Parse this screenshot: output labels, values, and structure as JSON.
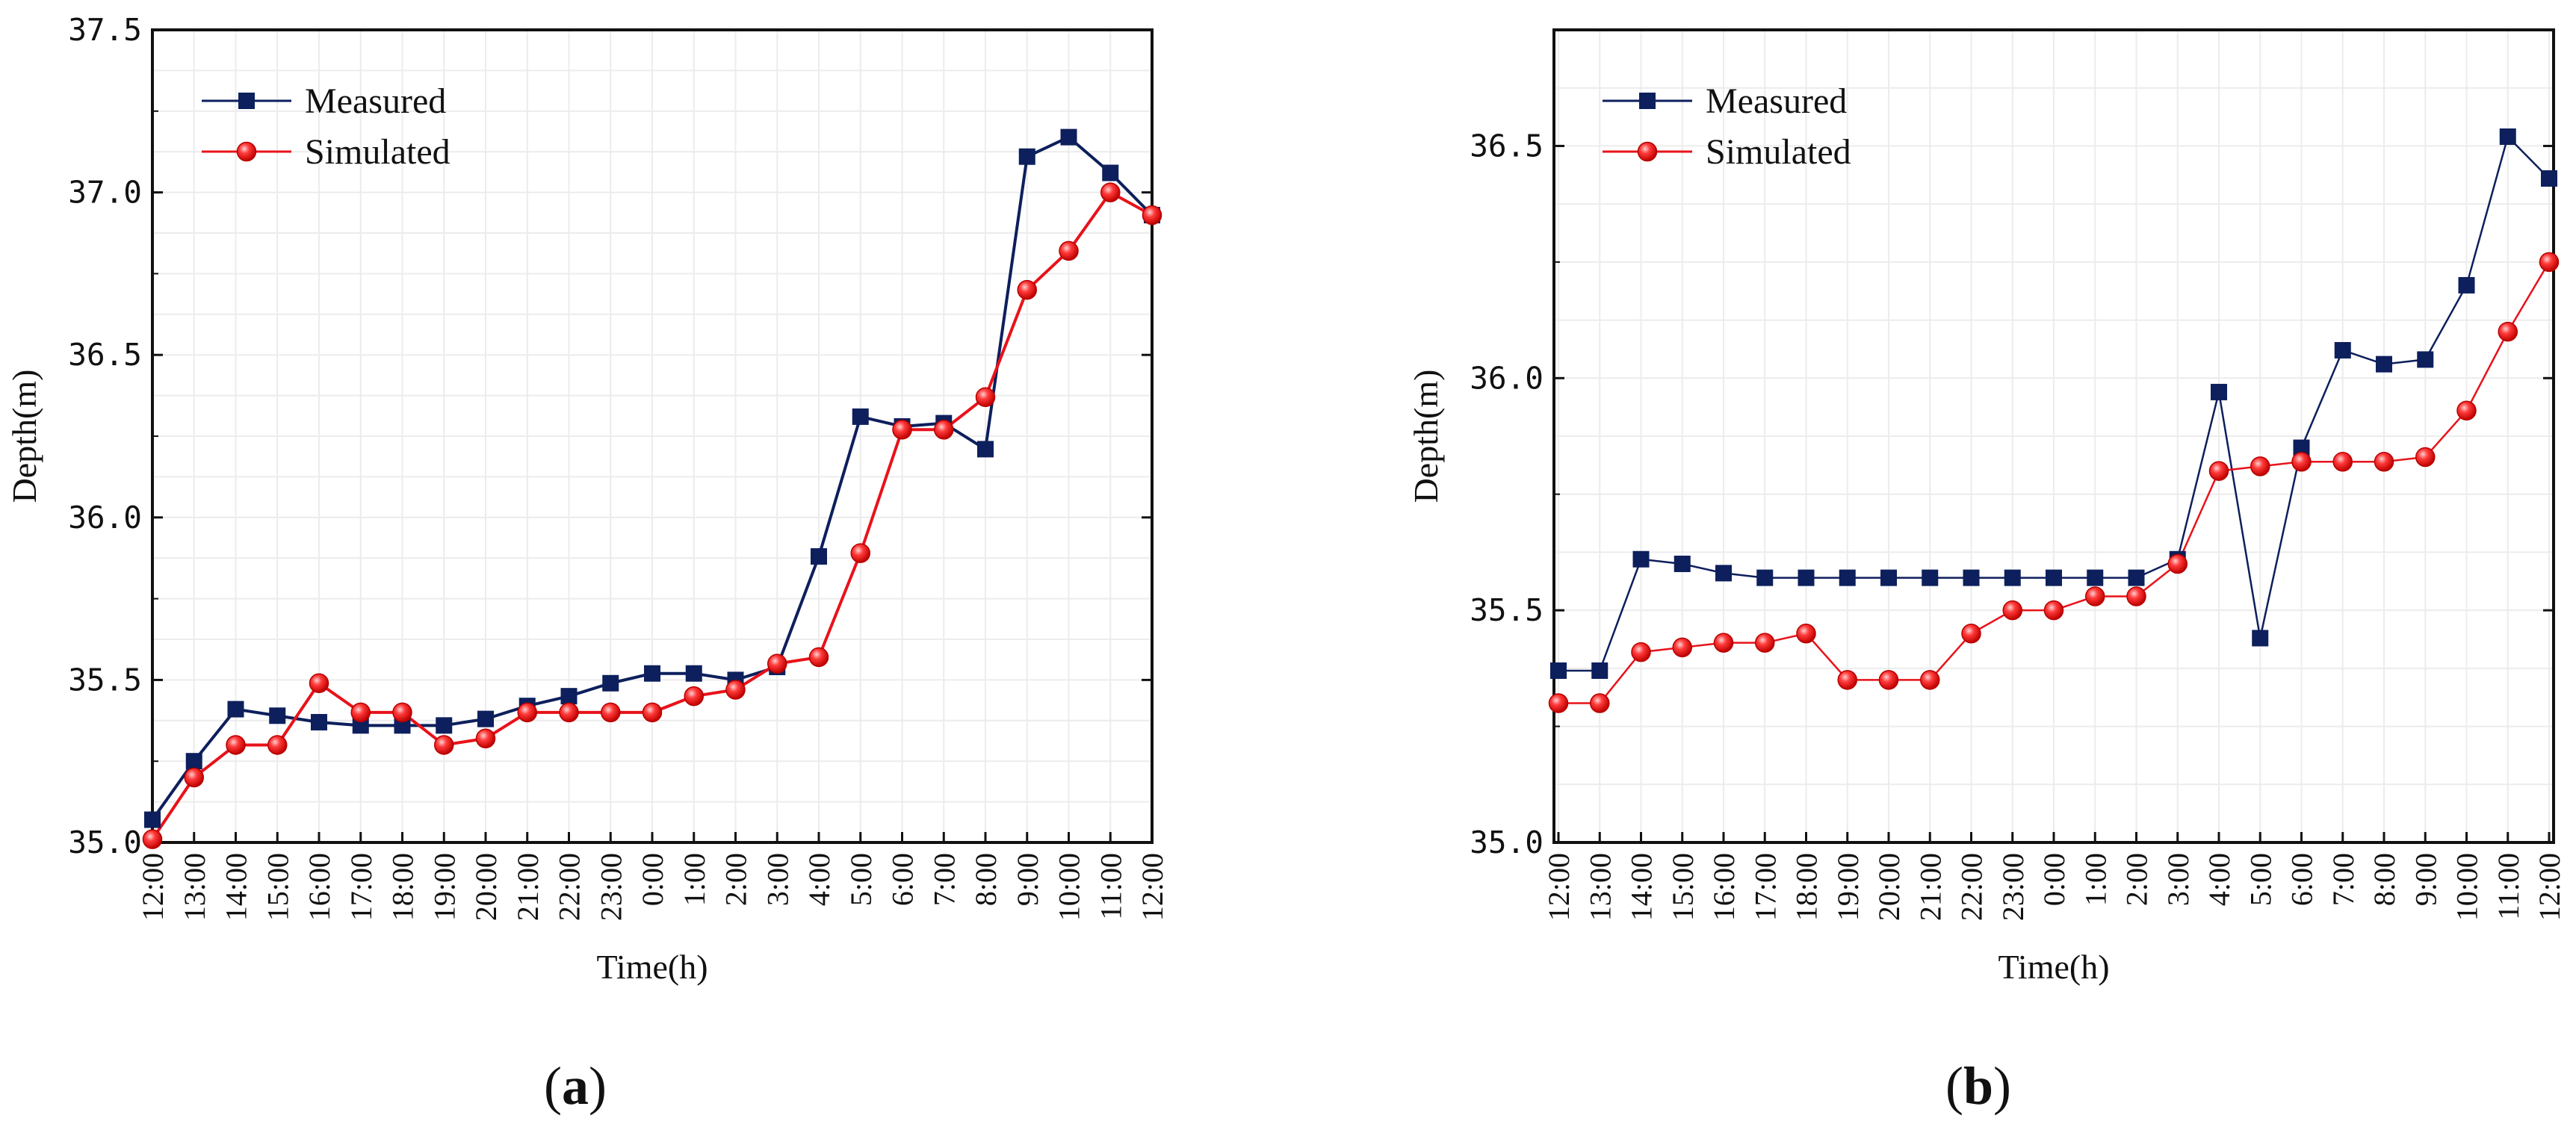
{
  "chart_data": [
    {
      "panel": "a",
      "type": "line",
      "xlabel": "Time(h)",
      "ylabel": "Depth(m)",
      "ylim": [
        35.0,
        37.5
      ],
      "yticks": [
        "35.0",
        "35.5",
        "36.0",
        "36.5",
        "37.0",
        "37.5"
      ],
      "categories": [
        "12:00",
        "13:00",
        "14:00",
        "15:00",
        "16:00",
        "17:00",
        "18:00",
        "19:00",
        "20:00",
        "21:00",
        "22:00",
        "23:00",
        "0:00",
        "1:00",
        "2:00",
        "3:00",
        "4:00",
        "5:00",
        "6:00",
        "7:00",
        "8:00",
        "9:00",
        "10:00",
        "11:00",
        "12:00"
      ],
      "legend_position": "top-left",
      "series": [
        {
          "name": "Measured",
          "marker": "square",
          "color": "#0d1f5c",
          "values": [
            35.07,
            35.25,
            35.41,
            35.39,
            35.37,
            35.36,
            35.36,
            35.36,
            35.38,
            35.42,
            35.45,
            35.49,
            35.52,
            35.52,
            35.5,
            35.54,
            35.88,
            36.31,
            36.28,
            36.29,
            36.21,
            37.11,
            37.17,
            37.06,
            36.93
          ]
        },
        {
          "name": "Simulated",
          "marker": "circle",
          "color": "#e8121a",
          "values": [
            35.01,
            35.2,
            35.3,
            35.3,
            35.49,
            35.4,
            35.4,
            35.3,
            35.32,
            35.4,
            35.4,
            35.4,
            35.4,
            35.45,
            35.47,
            35.55,
            35.57,
            35.89,
            36.27,
            36.27,
            36.37,
            36.7,
            36.82,
            37.0,
            36.93
          ]
        }
      ]
    },
    {
      "panel": "b",
      "type": "line",
      "xlabel": "Time(h)",
      "ylabel": "Depth(m)",
      "ylim": [
        35.0,
        36.75
      ],
      "yticks": [
        "35.0",
        "35.5",
        "36.0",
        "36.5"
      ],
      "categories": [
        "12:00",
        "13:00",
        "14:00",
        "15:00",
        "16:00",
        "17:00",
        "18:00",
        "19:00",
        "20:00",
        "21:00",
        "22:00",
        "23:00",
        "0:00",
        "1:00",
        "2:00",
        "3:00",
        "4:00",
        "5:00",
        "6:00",
        "7:00",
        "8:00",
        "9:00",
        "10:00",
        "11:00",
        "12:00"
      ],
      "legend_position": "top-left",
      "series": [
        {
          "name": "Measured",
          "marker": "square",
          "color": "#0d1f5c",
          "values": [
            35.37,
            35.37,
            35.61,
            35.6,
            35.58,
            35.57,
            35.57,
            35.57,
            35.57,
            35.57,
            35.57,
            35.57,
            35.57,
            35.57,
            35.57,
            35.61,
            35.97,
            35.44,
            35.85,
            36.06,
            36.03,
            36.04,
            36.2,
            36.52,
            36.43
          ]
        },
        {
          "name": "Simulated",
          "marker": "circle",
          "color": "#e8121a",
          "values": [
            35.3,
            35.3,
            35.41,
            35.42,
            35.43,
            35.43,
            35.45,
            35.35,
            35.35,
            35.35,
            35.45,
            35.5,
            35.5,
            35.53,
            35.53,
            35.6,
            35.8,
            35.81,
            35.82,
            35.82,
            35.82,
            35.83,
            35.93,
            36.1,
            36.25
          ]
        }
      ]
    }
  ],
  "panel_labels": [
    {
      "open": "(",
      "letter": "a",
      "close": ")"
    },
    {
      "open": "(",
      "letter": "b",
      "close": ")"
    }
  ]
}
